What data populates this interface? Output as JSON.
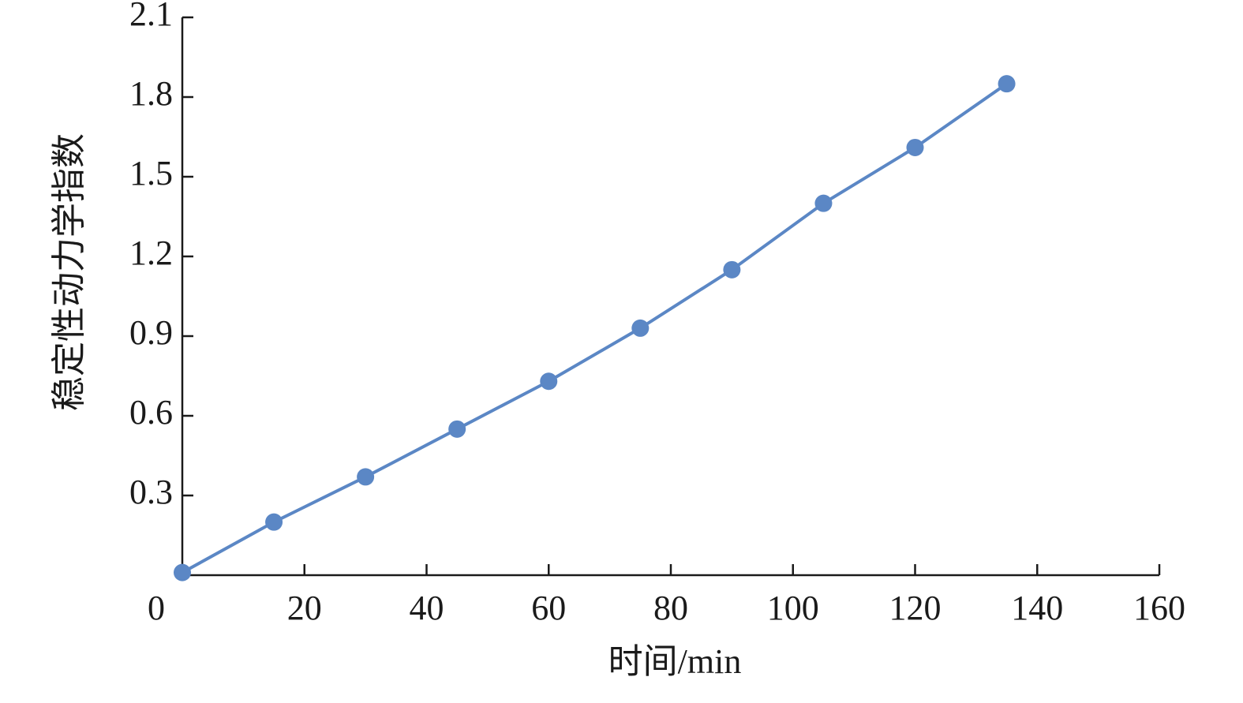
{
  "chart_data": {
    "type": "line",
    "x_label": "时间/min",
    "y_label": "稳定性动力学指数",
    "x": [
      0,
      15,
      30,
      45,
      60,
      75,
      90,
      105,
      120,
      135
    ],
    "series": [
      {
        "color": "#5b87c5",
        "values": [
          0.01,
          0.2,
          0.37,
          0.55,
          0.73,
          0.93,
          1.15,
          1.4,
          1.61,
          1.85
        ]
      }
    ],
    "xlim": [
      0,
      160
    ],
    "xticks": [
      0,
      20,
      40,
      60,
      80,
      100,
      120,
      140,
      160
    ],
    "ylim": [
      0,
      2.1
    ],
    "yticks": [
      0.3,
      0.6,
      0.9,
      1.2,
      1.5,
      1.8,
      2.1
    ],
    "grid": false
  }
}
